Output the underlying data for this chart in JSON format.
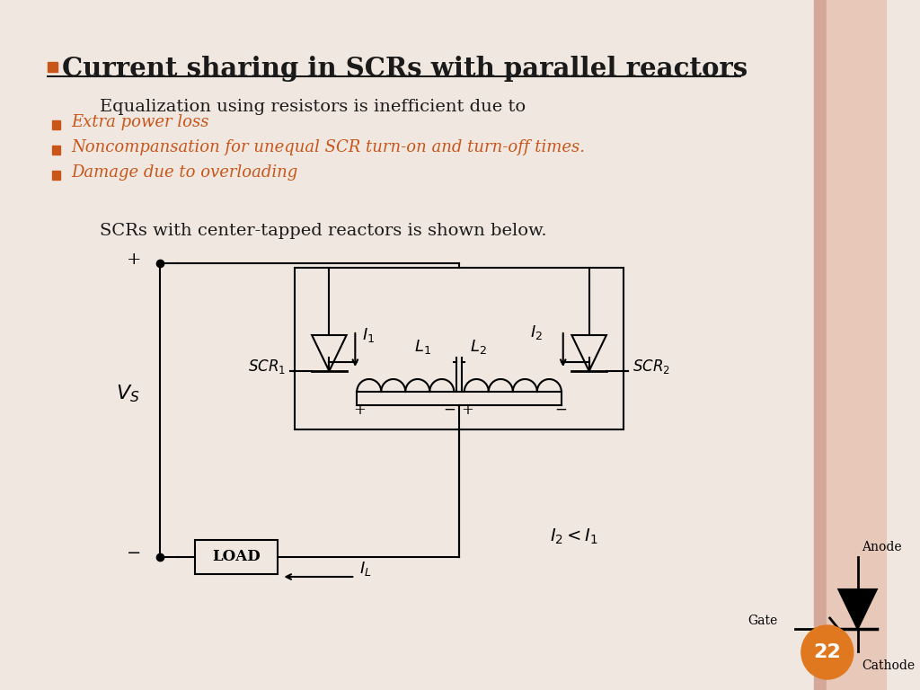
{
  "title": "Current sharing in SCRs with parallel reactors",
  "bg_color": "#f0e8e0",
  "right_stripe1_color": "#d4a898",
  "right_stripe2_color": "#e8c8b8",
  "text_color": "#1a1a1a",
  "orange_color": "#c8561a",
  "line1": "Equalization using resistors is inefficient due to",
  "bullet1": "Extra power loss",
  "bullet2": "Noncompansation for unequal SCR turn-on and turn-off times.",
  "bullet3": "Damage due to overloading",
  "line2": "SCRs with center-tapped reactors is shown below.",
  "page_num": "22",
  "page_circle_color": "#e07820"
}
